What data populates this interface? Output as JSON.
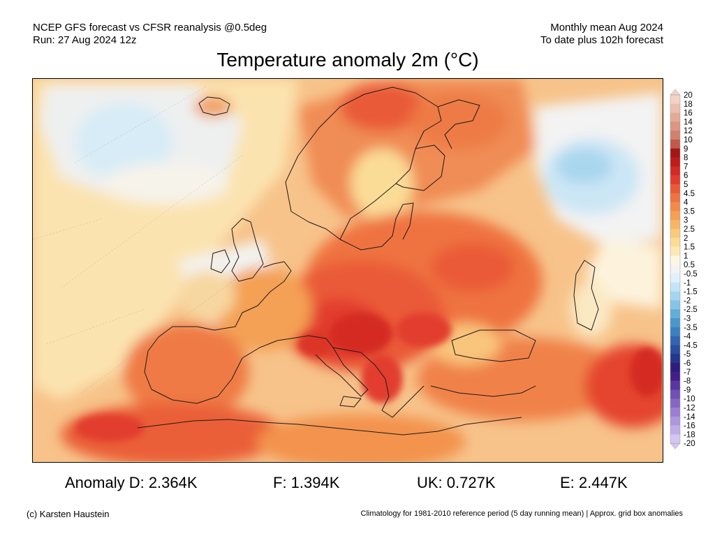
{
  "header": {
    "left_line1": "NCEP GFS forecast vs CFSR reanalysis @0.5deg",
    "left_line2": "Run: 27 Aug 2024 12z",
    "right_line1": "Monthly mean Aug 2024",
    "right_line2": "To date plus 102h forecast"
  },
  "title": "Temperature anomaly 2m (°C)",
  "colorbar": {
    "labels": [
      "20",
      "18",
      "16",
      "14",
      "12",
      "10",
      "9",
      "8",
      "7",
      "6",
      "5",
      "4.5",
      "4",
      "3.5",
      "3",
      "2.5",
      "2",
      "1.5",
      "1",
      "0.5",
      "-0.5",
      "-1",
      "-1.5",
      "-2",
      "-2.5",
      "-3",
      "-3.5",
      "-4",
      "-4.5",
      "-5",
      "-6",
      "-7",
      "-8",
      "-9",
      "-10",
      "-12",
      "-14",
      "-16",
      "-18",
      "-20"
    ],
    "colors": [
      "#f2d3c6",
      "#eabfae",
      "#e2ab98",
      "#d99683",
      "#cf816e",
      "#bf5a4a",
      "#a31616",
      "#bd1c1c",
      "#d42a24",
      "#e23c2e",
      "#ea5a37",
      "#ef7340",
      "#f28a4a",
      "#f4a055",
      "#f7b667",
      "#f9ca7d",
      "#fbdc97",
      "#fce9b8",
      "#fdf6e2",
      "#f3f3f3",
      "#dff1fb",
      "#c4e5f6",
      "#a5d6ef",
      "#85c4e5",
      "#62aed9",
      "#4a97cc",
      "#3c80bf",
      "#3266b0",
      "#2a4d9e",
      "#25368c",
      "#2d1e7c",
      "#432089",
      "#5b36a1",
      "#7150b3",
      "#8766c3",
      "#9b7ed0",
      "#ad96dc",
      "#c0ade6",
      "#d3c6f0"
    ]
  },
  "stats": {
    "D": "Anomaly D: 2.364K",
    "F": "F: 1.394K",
    "UK": "UK: 0.727K",
    "E": "E: 2.447K"
  },
  "footer": {
    "credit": "(c) Karsten Haustein",
    "note": "Climatology for 1981-2010 reference period (5 day running mean) | Approx. grid box anomalies"
  }
}
